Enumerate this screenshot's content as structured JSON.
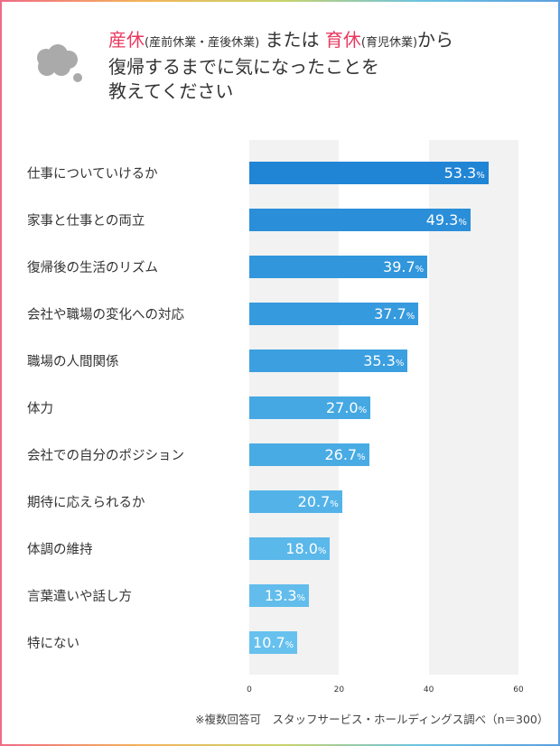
{
  "title": {
    "part1": "産休",
    "part1_sub": "(産前休業・産後休業)",
    "mid": " または ",
    "part2": "育休",
    "part2_sub": "(育児休業)",
    "part2_tail": "から",
    "line2": "復帰するまでに気になったことを",
    "line3": "教えてください"
  },
  "note": "※複数回答可　スタッフサービス・ホールディングス調べ（n＝300）",
  "colors": {
    "accent": "#e8385e"
  },
  "chart_data": {
    "type": "bar",
    "orientation": "horizontal",
    "categories": [
      "仕事についていけるか",
      "家事と仕事との両立",
      "復帰後の生活のリズム",
      "会社や職場の変化への対応",
      "職場の人間関係",
      "体力",
      "会社での自分のポジション",
      "期待に応えられるか",
      "体調の維持",
      "言葉遣いや話し方",
      "特にない"
    ],
    "values": [
      53.3,
      49.3,
      39.7,
      37.7,
      35.3,
      27.0,
      26.7,
      20.7,
      18.0,
      13.3,
      10.7
    ],
    "value_labels": [
      "53.3",
      "49.3",
      "39.7",
      "37.7",
      "35.3",
      "27.0",
      "26.7",
      "20.7",
      "18.0",
      "13.3",
      "10.7"
    ],
    "unit": "%",
    "colors": [
      "#2185d5",
      "#2a8ed9",
      "#3196dc",
      "#369ade",
      "#3b9fe0",
      "#45a8e3",
      "#48abe4",
      "#53b3e8",
      "#5ab8ea",
      "#62bdec",
      "#67c1ee"
    ],
    "xlim": [
      0,
      60
    ],
    "ticks": [
      "0",
      "20",
      "40",
      "60"
    ]
  }
}
